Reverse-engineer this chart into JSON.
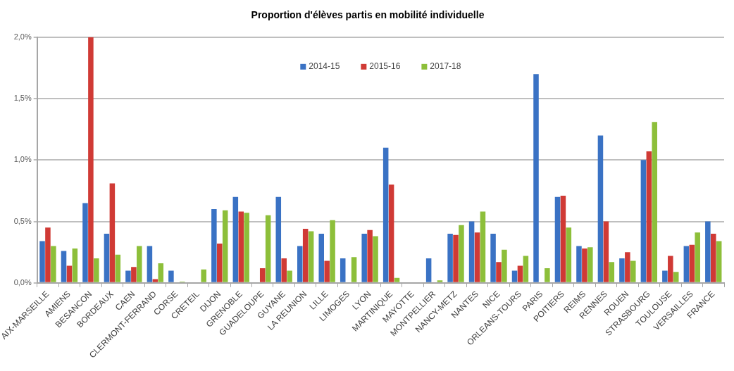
{
  "chart_data": {
    "type": "bar",
    "title": "Proportion d'élèves partis en mobilité individuelle",
    "categories": [
      "AIX-MARSEILLE",
      "AMIENS",
      "BESANCON",
      "BORDEAUX",
      "CAEN",
      "CLERMONT-FERRAND",
      "CORSE",
      "CRETEIL",
      "DIJON",
      "GRENOBLE",
      "GUADELOUPE",
      "GUYANE",
      "LA REUNION",
      "LILLE",
      "LIMOGES",
      "LYON",
      "MARTINIQUE",
      "MAYOTTE",
      "MONTPELLIER",
      "NANCY-METZ",
      "NANTES",
      "NICE",
      "ORLEANS-TOURS",
      "PARIS",
      "POITIERS",
      "REIMS",
      "RENNES",
      "ROUEN",
      "STRASBOURG",
      "TOULOUSE",
      "VERSAILLES",
      "FRANCE"
    ],
    "series": [
      {
        "name": "2014-15",
        "color": "#3a72c4",
        "values": [
          0.34,
          0.26,
          0.65,
          0.4,
          0.1,
          0.3,
          0.1,
          0.0,
          0.6,
          0.7,
          0.0,
          0.7,
          0.3,
          0.4,
          0.2,
          0.4,
          1.1,
          0.0,
          0.2,
          0.4,
          0.5,
          0.4,
          0.1,
          1.7,
          0.7,
          0.3,
          1.2,
          0.2,
          1.0,
          0.1,
          0.3,
          0.5
        ]
      },
      {
        "name": "2015-16",
        "color": "#d03a35",
        "values": [
          0.45,
          0.14,
          2.0,
          0.81,
          0.13,
          0.03,
          0.0,
          0.0,
          0.32,
          0.58,
          0.12,
          0.2,
          0.44,
          0.18,
          0.0,
          0.43,
          0.8,
          0.0,
          0.0,
          0.39,
          0.41,
          0.17,
          0.14,
          0.0,
          0.71,
          0.28,
          0.5,
          0.25,
          1.07,
          0.22,
          0.31,
          0.4
        ]
      },
      {
        "name": "2017-18",
        "color": "#8dbf3a",
        "values": [
          0.3,
          0.28,
          0.2,
          0.23,
          0.3,
          0.16,
          0.01,
          0.11,
          0.59,
          0.57,
          0.55,
          0.1,
          0.42,
          0.51,
          0.21,
          0.38,
          0.04,
          0.0,
          0.02,
          0.47,
          0.58,
          0.27,
          0.22,
          0.12,
          0.45,
          0.29,
          0.17,
          0.18,
          1.31,
          0.09,
          0.41,
          0.34
        ]
      }
    ],
    "ylim": [
      0,
      2
    ],
    "yticks": [
      {
        "value": 0,
        "label": "0,0%"
      },
      {
        "value": 0.5,
        "label": "0,5%"
      },
      {
        "value": 1,
        "label": "1,0%"
      },
      {
        "value": 1.5,
        "label": "1,5%"
      },
      {
        "value": 2,
        "label": "2,0%"
      }
    ],
    "grid": "y",
    "legend": "top"
  }
}
